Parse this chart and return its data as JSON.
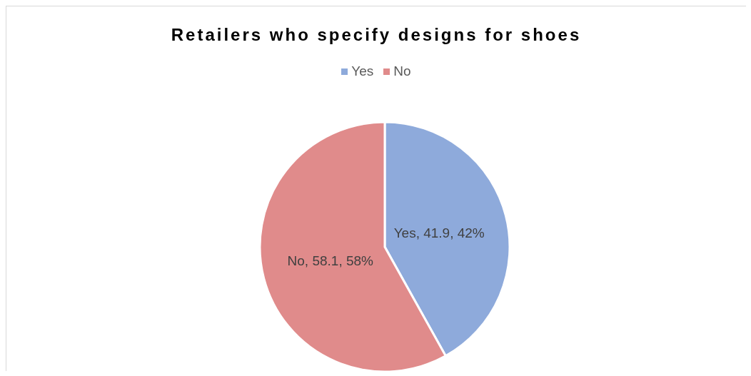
{
  "chart_data": {
    "type": "pie",
    "title": "Retailers who specify designs for shoes",
    "categories": [
      "Yes",
      "No"
    ],
    "values": [
      41.9,
      58.1
    ],
    "colors": [
      "#8eaadb",
      "#e08b8b"
    ],
    "value_labels": [
      "Yes, 41.9, 42%",
      "No, 58.1, 58%"
    ],
    "legend": "top"
  }
}
